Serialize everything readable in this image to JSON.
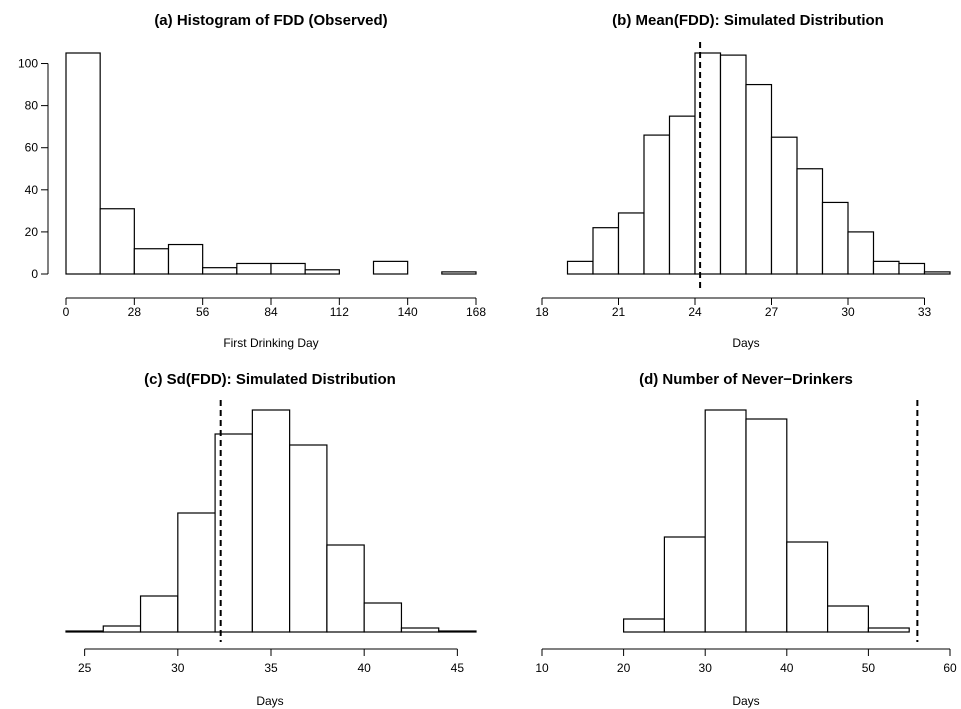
{
  "chart_data": [
    {
      "type": "bar",
      "title": "(a) Histogram of FDD (Observed)",
      "xlabel": "First Drinking Day",
      "ylabel": "",
      "xlim": [
        0,
        168
      ],
      "ylim": [
        0,
        105
      ],
      "xticks": [
        "0",
        "28",
        "56",
        "84",
        "112",
        "140",
        "168"
      ],
      "yticks": [
        "0",
        "20",
        "40",
        "60",
        "80",
        "100"
      ],
      "bin_edges": [
        0,
        14,
        28,
        42,
        56,
        70,
        84,
        98,
        112,
        126,
        140,
        154,
        168
      ],
      "values": [
        105,
        31,
        12,
        14,
        3,
        5,
        5,
        2,
        0,
        6,
        0,
        1
      ],
      "reference_line": null
    },
    {
      "type": "bar",
      "title": "(b) Mean(FDD): Simulated Distribution",
      "xlabel": "Days",
      "ylabel": "",
      "xlim": [
        18,
        34
      ],
      "xticks": [
        "18",
        "21",
        "24",
        "27",
        "30",
        "33"
      ],
      "yticks": [],
      "bin_edges": [
        19,
        20,
        21,
        22,
        23,
        24,
        25,
        26,
        27,
        28,
        29,
        30,
        31,
        32,
        33,
        34
      ],
      "values": [
        6,
        22,
        29,
        66,
        75,
        105,
        104,
        90,
        65,
        50,
        34,
        20,
        6,
        5,
        1
      ],
      "ylim": [
        0,
        105
      ],
      "reference_line": 24.2
    },
    {
      "type": "bar",
      "title": "(c) Sd(FDD): Simulated Distribution",
      "xlabel": "Days",
      "ylabel": "",
      "xlim": [
        24,
        46
      ],
      "xticks": [
        "25",
        "30",
        "35",
        "40",
        "45"
      ],
      "yticks": [],
      "bin_edges": [
        24,
        26,
        28,
        30,
        32,
        34,
        36,
        38,
        40,
        42,
        44,
        46
      ],
      "values": [
        1,
        6,
        36,
        119,
        198,
        222,
        187,
        87,
        29,
        4,
        1
      ],
      "ylim": [
        0,
        222
      ],
      "reference_line": 32.3
    },
    {
      "type": "bar",
      "title": "(d) Number of Never−Drinkers",
      "xlabel": "Days",
      "ylabel": "",
      "xlim": [
        10,
        60
      ],
      "xticks": [
        "10",
        "20",
        "30",
        "40",
        "50",
        "60"
      ],
      "yticks": [],
      "bin_edges": [
        20,
        25,
        30,
        35,
        40,
        45,
        50,
        55
      ],
      "values": [
        13,
        95,
        222,
        213,
        90,
        26,
        4
      ],
      "ylim": [
        0,
        222
      ],
      "reference_line": 56
    }
  ]
}
